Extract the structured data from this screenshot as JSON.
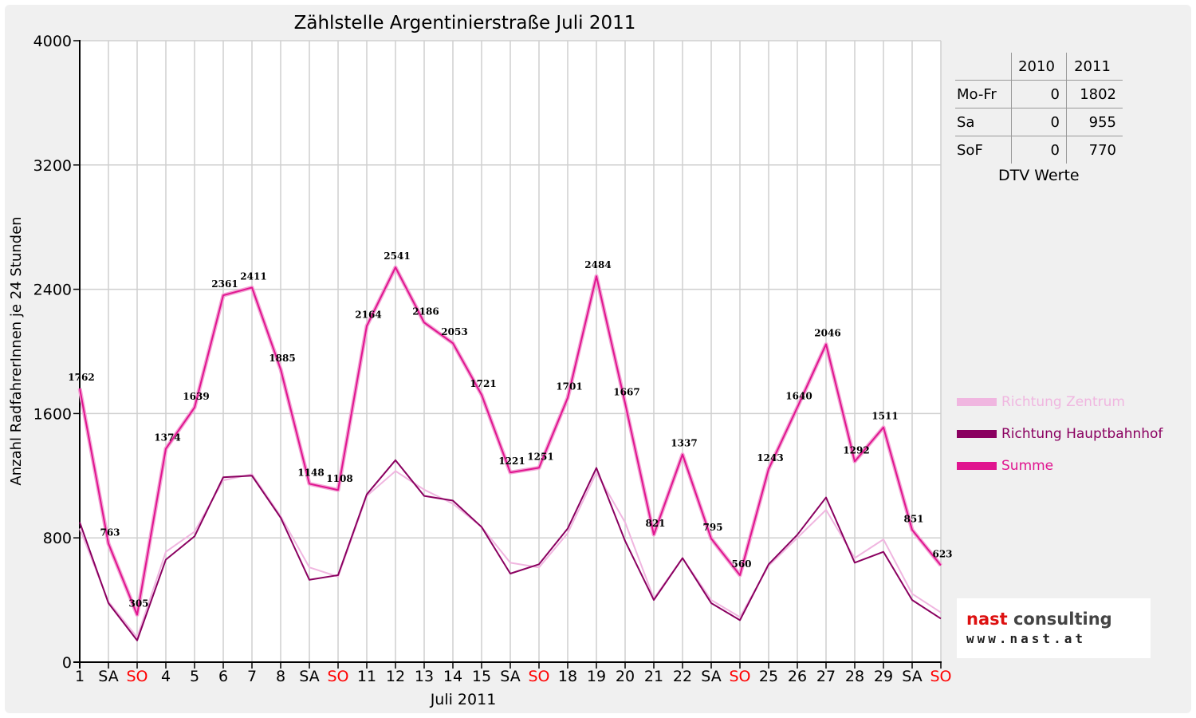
{
  "chart_data": {
    "type": "line",
    "title": "Zählstelle Argentinierstraße Juli 2011",
    "xlabel": "Juli 2011",
    "ylabel": "Anzahl RadfahrerInnen je 24 Stunden",
    "ylim": [
      0,
      4000
    ],
    "yticks": [
      0,
      800,
      1600,
      2400,
      3200,
      4000
    ],
    "grid": true,
    "legend_position": "right",
    "categories": [
      "1",
      "SA",
      "SO",
      "4",
      "5",
      "6",
      "7",
      "8",
      "SA",
      "SO",
      "11",
      "12",
      "13",
      "14",
      "15",
      "SA",
      "SO",
      "18",
      "19",
      "20",
      "21",
      "22",
      "SA",
      "SO",
      "25",
      "26",
      "27",
      "28",
      "29",
      "SA",
      "SO"
    ],
    "weekend_color": "#ff0000",
    "series": [
      {
        "name": "Richtung Zentrum",
        "color": "#f0b6e0",
        "values": [
          860,
          390,
          160,
          710,
          840,
          1170,
          1210,
          940,
          610,
          550,
          1070,
          1230,
          1110,
          1020,
          870,
          640,
          610,
          830,
          1220,
          900,
          410,
          670,
          400,
          290,
          620,
          800,
          980,
          670,
          790,
          440,
          320
        ]
      },
      {
        "name": "Richtung Hauptbahnhof",
        "color": "#8a0060",
        "values": [
          900,
          380,
          140,
          660,
          810,
          1190,
          1200,
          930,
          530,
          560,
          1080,
          1300,
          1070,
          1040,
          870,
          570,
          630,
          860,
          1250,
          780,
          400,
          670,
          380,
          270,
          630,
          820,
          1060,
          640,
          710,
          400,
          280
        ]
      },
      {
        "name": "Summe",
        "color": "#e0158f",
        "labeled": true,
        "values": [
          1762,
          763,
          305,
          1374,
          1639,
          2361,
          2411,
          1885,
          1148,
          1108,
          2164,
          2541,
          2186,
          2053,
          1721,
          1221,
          1251,
          1701,
          2484,
          1667,
          821,
          1337,
          795,
          560,
          1243,
          1640,
          2046,
          1292,
          1511,
          851,
          623
        ]
      }
    ]
  },
  "dtv_table": {
    "headers": [
      "2010",
      "2011"
    ],
    "rows": [
      {
        "label": "Mo-Fr",
        "v2010": "0",
        "v2011": "1802"
      },
      {
        "label": "Sa",
        "v2010": "0",
        "v2011": "955"
      },
      {
        "label": "SoF",
        "v2010": "0",
        "v2011": "770"
      }
    ],
    "caption": "DTV Werte"
  },
  "logo": {
    "name_part1": "nast",
    "name_part2": " consulting",
    "url": "www.nast.at"
  }
}
